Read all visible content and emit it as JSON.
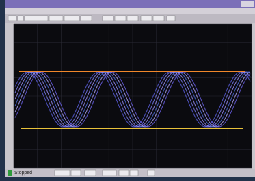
{
  "status": "Stopped"
}
